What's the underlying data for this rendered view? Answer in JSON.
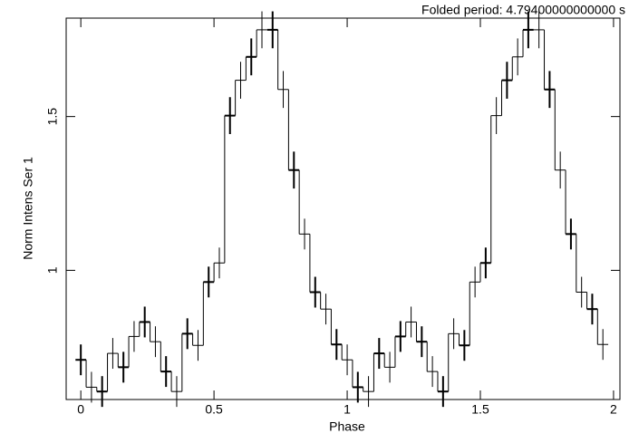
{
  "chart_data": {
    "type": "step",
    "title": "Folded period: 4.79400000000000 s",
    "x_label": "Phase",
    "y_label": "Norm Intens Ser  1",
    "x": [
      0,
      0.04,
      0.08,
      0.12,
      0.16,
      0.2,
      0.24,
      0.28,
      0.32,
      0.36,
      0.4,
      0.44,
      0.48,
      0.52,
      0.56,
      0.6,
      0.64,
      0.68,
      0.72,
      0.76,
      0.8,
      0.84,
      0.88,
      0.92,
      0.96,
      1,
      1.04,
      1.08,
      1.12,
      1.16,
      1.2,
      1.24,
      1.28,
      1.32,
      1.36,
      1.4,
      1.44,
      1.48,
      1.52,
      1.56,
      1.6,
      1.64,
      1.68,
      1.72,
      1.76,
      1.8,
      1.84,
      1.88,
      1.92,
      1.96
    ],
    "values": [
      0.709,
      0.62,
      0.606,
      0.73,
      0.685,
      0.785,
      0.832,
      0.768,
      0.671,
      0.606,
      0.794,
      0.756,
      0.962,
      1.024,
      1.503,
      1.618,
      1.694,
      1.782,
      1.782,
      1.588,
      1.326,
      1.118,
      0.929,
      0.874,
      0.759,
      0.709,
      0.62,
      0.606,
      0.73,
      0.685,
      0.785,
      0.832,
      0.768,
      0.671,
      0.606,
      0.794,
      0.756,
      0.962,
      1.024,
      1.503,
      1.618,
      1.694,
      1.782,
      1.782,
      1.588,
      1.326,
      1.118,
      0.929,
      0.874,
      0.759
    ],
    "errors": [
      0.05,
      0.05,
      0.05,
      0.05,
      0.05,
      0.05,
      0.05,
      0.05,
      0.05,
      0.05,
      0.05,
      0.05,
      0.05,
      0.05,
      0.06,
      0.06,
      0.06,
      0.06,
      0.06,
      0.06,
      0.06,
      0.05,
      0.05,
      0.05,
      0.05,
      0.05,
      0.05,
      0.05,
      0.05,
      0.05,
      0.05,
      0.05,
      0.05,
      0.05,
      0.05,
      0.05,
      0.05,
      0.05,
      0.05,
      0.06,
      0.06,
      0.06,
      0.06,
      0.06,
      0.06,
      0.06,
      0.05,
      0.05,
      0.05,
      0.05
    ],
    "color": "#000000",
    "xlim": [
      -0.055,
      2.024
    ],
    "ylim": [
      0.58,
      1.82
    ],
    "xticks": [
      0,
      0.5,
      1,
      1.5,
      2
    ],
    "yticks": [
      1,
      1.5
    ]
  }
}
